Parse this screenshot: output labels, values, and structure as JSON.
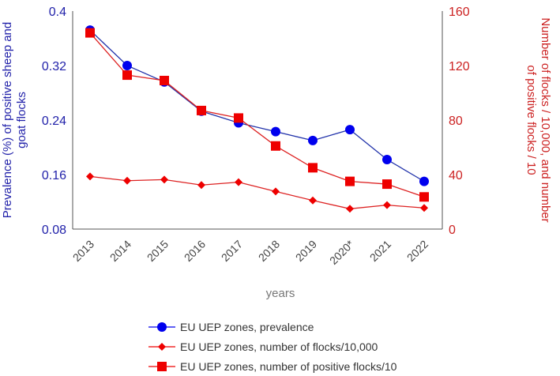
{
  "chart_data": {
    "type": "line",
    "title": "",
    "xlabel": "years",
    "ylabel": "Prevalence (%) of positive sheep and goat flocks",
    "y2label": "Number of flocks / 10,000, and number of positive flocks / 10",
    "categories": [
      "2013",
      "2014",
      "2015",
      "2016",
      "2017",
      "2018",
      "2019",
      "2020*",
      "2021",
      "2022"
    ],
    "ylim": [
      0.08,
      0.4
    ],
    "yticks": [
      "0.08",
      "0.16",
      "0.24",
      "0.32",
      "0.4"
    ],
    "y2lim": [
      0,
      160
    ],
    "y2ticks": [
      "0",
      "40",
      "80",
      "120",
      "160"
    ],
    "grid": false,
    "legend_position": "bottom",
    "series": [
      {
        "name": "EU UEP zones, prevalence",
        "axis": "left",
        "marker": "circle",
        "color": "#0000ee",
        "values": [
          0.372,
          0.32,
          0.296,
          0.253,
          0.236,
          0.223,
          0.21,
          0.226,
          0.182,
          0.15
        ]
      },
      {
        "name": "EU UEP zones, number of flocks/10,000",
        "axis": "right",
        "marker": "diamond",
        "color": "#ee0000",
        "values": [
          38.6,
          35.5,
          36.3,
          32.3,
          34.4,
          27.6,
          21,
          14.9,
          17.6,
          15.5
        ]
      },
      {
        "name": "EU UEP zones, number of positive flocks/10",
        "axis": "right",
        "marker": "square",
        "color": "#ee0000",
        "values": [
          144,
          113,
          109,
          87,
          81.5,
          61,
          45,
          35,
          33,
          23.6
        ]
      }
    ]
  }
}
